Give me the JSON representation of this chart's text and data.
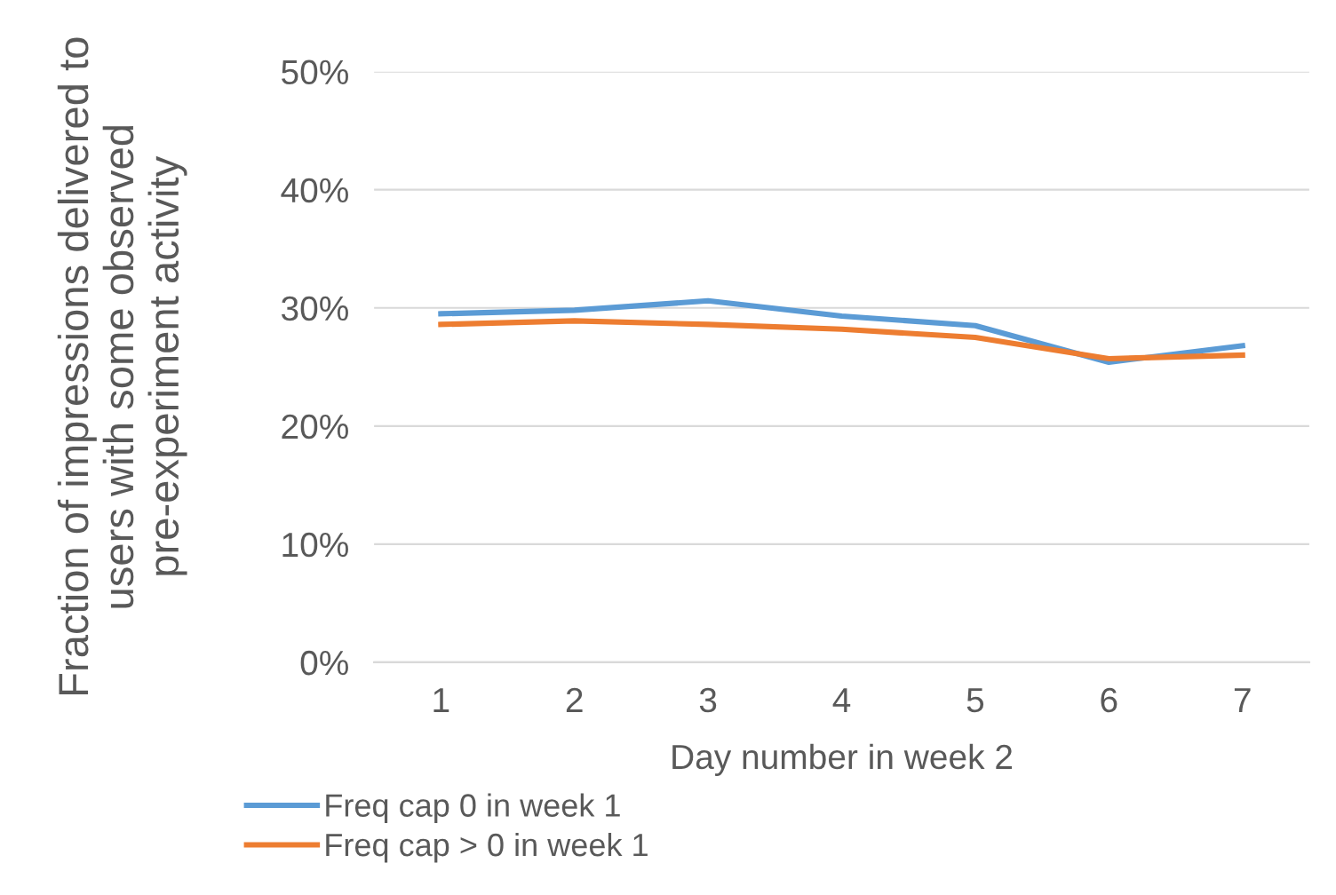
{
  "chart_data": {
    "type": "line",
    "xlabel": "Day number in week 2",
    "ylabel": "Fraction of impressions delivered to users with some observed pre-experiment activity",
    "categories": [
      "1",
      "2",
      "3",
      "4",
      "5",
      "6",
      "7"
    ],
    "series": [
      {
        "name": "Freq cap 0 in week 1",
        "color": "#5b9bd5",
        "values": [
          29.5,
          29.8,
          30.6,
          29.3,
          28.5,
          25.4,
          26.8
        ]
      },
      {
        "name": "Freq cap > 0 in week 1",
        "color": "#ed7d31",
        "values": [
          28.6,
          28.9,
          28.6,
          28.2,
          27.5,
          25.7,
          26.0
        ]
      }
    ],
    "ylim": [
      0,
      50
    ],
    "yticks": [
      {
        "value": 0,
        "label": "0%"
      },
      {
        "value": 10,
        "label": "10%"
      },
      {
        "value": 20,
        "label": "20%"
      },
      {
        "value": 30,
        "label": "30%"
      },
      {
        "value": 40,
        "label": "40%"
      },
      {
        "value": 50,
        "label": "50%"
      }
    ],
    "grid": "y",
    "legend": "bottom",
    "marker": "none",
    "line_style": "solid"
  }
}
